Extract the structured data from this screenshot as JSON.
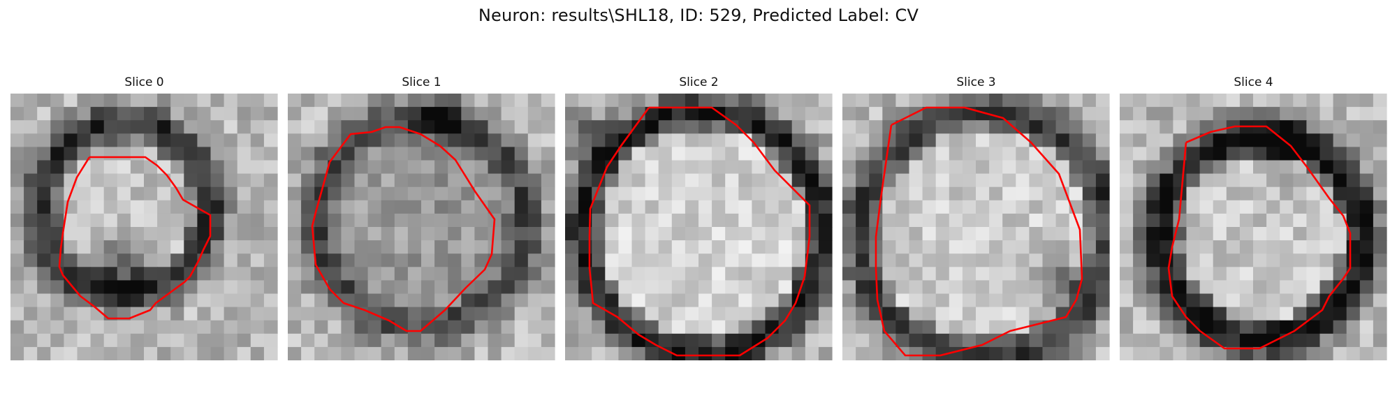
{
  "figure": {
    "title": "Neuron: results\\SHL18, ID: 529, Predicted Label: CV"
  },
  "colors": {
    "contour": "#ff0000",
    "background": "#ffffff"
  },
  "slices": [
    {
      "label": "Slice 0"
    },
    {
      "label": "Slice 1"
    },
    {
      "label": "Slice 2"
    },
    {
      "label": "Slice 3"
    },
    {
      "label": "Slice 4"
    }
  ]
}
